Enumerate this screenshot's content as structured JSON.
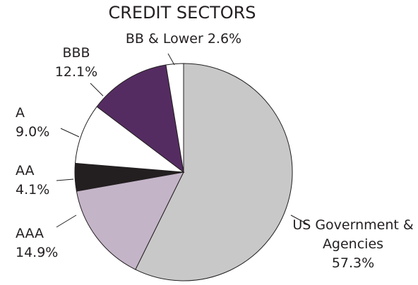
{
  "chart_data": {
    "type": "pie",
    "title": "CREDIT SECTORS",
    "categories": [
      "US Government & Agencies",
      "AAA",
      "AA",
      "A",
      "BBB",
      "BB & Lower"
    ],
    "values": [
      57.3,
      14.9,
      4.1,
      9.0,
      12.1,
      2.6
    ],
    "value_labels": [
      "57.3%",
      "14.9%",
      "4.1%",
      "9.0%",
      "12.1%",
      "2.6%"
    ],
    "colors": [
      "#c8c8c8",
      "#c4b4c8",
      "#231f20",
      "#ffffff",
      "#552c62",
      "#ffffff"
    ]
  }
}
